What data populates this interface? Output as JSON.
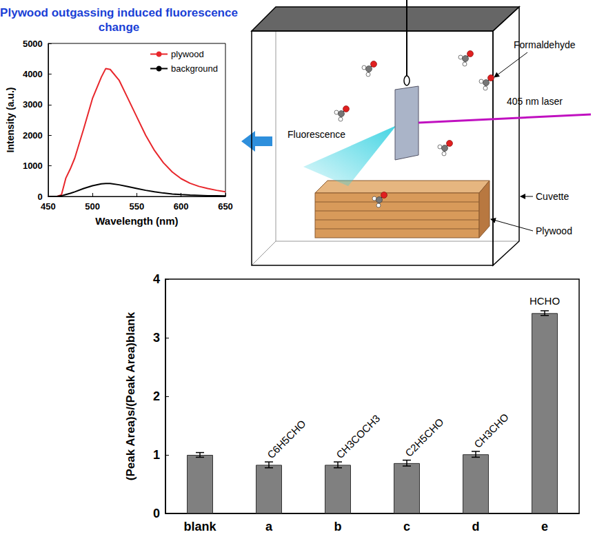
{
  "chart_data": [
    {
      "type": "line",
      "title": "Plywood outgassing induced fluorescence change",
      "x_label": "Wavelength (nm)",
      "y_label": "Intensity (a.u.)",
      "x": [
        450,
        460,
        465,
        470,
        475,
        480,
        490,
        500,
        510,
        515,
        520,
        530,
        540,
        550,
        560,
        570,
        580,
        590,
        600,
        610,
        620,
        630,
        640,
        650
      ],
      "series": [
        {
          "name": "plywood",
          "color": "#e8262b",
          "values": [
            0,
            0,
            50,
            600,
            900,
            1250,
            2200,
            3200,
            3900,
            4180,
            4150,
            3800,
            3200,
            2600,
            2000,
            1500,
            1100,
            800,
            580,
            430,
            330,
            260,
            200,
            150
          ]
        },
        {
          "name": "background",
          "color": "#000000",
          "values": [
            0,
            0,
            20,
            60,
            100,
            150,
            260,
            350,
            410,
            420,
            420,
            380,
            320,
            260,
            200,
            150,
            110,
            80,
            60,
            45,
            35,
            25,
            20,
            15
          ]
        }
      ],
      "xlim": [
        450,
        650
      ],
      "xticks": [
        450,
        500,
        550,
        600,
        650
      ],
      "ylim": [
        0,
        5000
      ],
      "yticks": [
        0,
        1000,
        2000,
        3000,
        4000,
        5000
      ],
      "legend": "upper right",
      "grid": false
    },
    {
      "type": "bar",
      "categories": [
        "blank",
        "a",
        "b",
        "c",
        "d",
        "e"
      ],
      "values": [
        1.0,
        0.83,
        0.83,
        0.86,
        1.01,
        3.42
      ],
      "errors": [
        0.04,
        0.05,
        0.05,
        0.05,
        0.05,
        0.04
      ],
      "annotations": [
        null,
        "C6H5CHO",
        "CH3COCH3",
        "C2H5CHO",
        "CH3CHO",
        "HCHO"
      ],
      "color": "#808080",
      "y_label": "(Peak Area)s/(Peak Area)blank",
      "ylim": [
        0,
        4
      ],
      "yticks": [
        0,
        1,
        2,
        3,
        4
      ],
      "grid": false
    }
  ],
  "diagram": {
    "labels": {
      "formaldehyde": "Formaldehyde",
      "laser": "405 nm laser",
      "fluorescence": "Fluorescence",
      "cuvette": "Cuvette",
      "plywood": "Plywood"
    }
  }
}
